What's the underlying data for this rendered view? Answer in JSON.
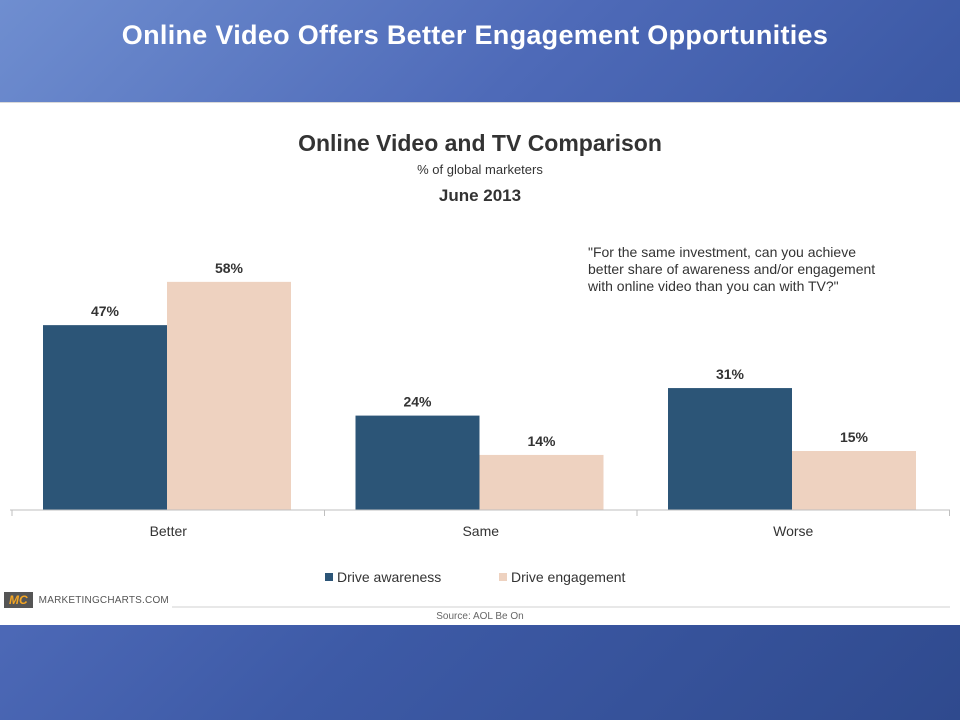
{
  "slide": {
    "title": "Online Video Offers Better Engagement Opportunities"
  },
  "chart_data": {
    "type": "bar",
    "title": "Online Video and TV Comparison",
    "subtitle": "% of global marketers",
    "date": "June 2013",
    "annotation": [
      "\"For the same investment, can you achieve",
      "better share of awareness and/or engagement",
      "with online video than you can with TV?\""
    ],
    "categories": [
      "Better",
      "Same",
      "Worse"
    ],
    "series": [
      {
        "name": "Drive awareness",
        "values": [
          47,
          24,
          31
        ],
        "labels": [
          "47%",
          "24%",
          "31%"
        ],
        "color": "#2c5577"
      },
      {
        "name": "Drive engagement",
        "values": [
          58,
          14,
          15
        ],
        "labels": [
          "58%",
          "14%",
          "15%"
        ],
        "color": "#eed2c0"
      }
    ],
    "ylim": [
      0,
      60
    ],
    "grid": false,
    "legend_position": "bottom-center",
    "source": "Source: AOL Be On"
  },
  "branding": {
    "logo_mark": "MC",
    "logo_text": "MARKETINGCHARTS.COM"
  }
}
